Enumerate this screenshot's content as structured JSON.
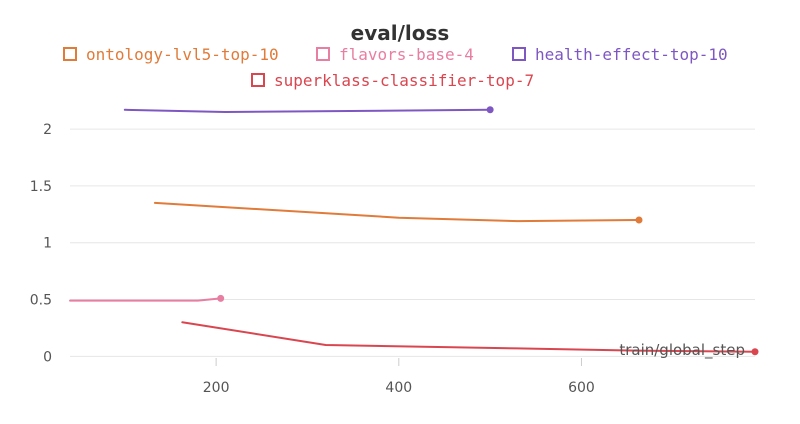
{
  "chart_data": {
    "type": "line",
    "title": "eval/loss",
    "xlabel": "train/global_step",
    "ylabel": "",
    "xlim": [
      40,
      790
    ],
    "ylim": [
      -0.05,
      2.3
    ],
    "x_ticks": [
      200,
      400,
      600
    ],
    "y_ticks": [
      0,
      0.5,
      1,
      1.5,
      2
    ],
    "y_tick_labels": [
      "0",
      "0.5",
      "1",
      "1.5",
      "2"
    ],
    "grid": "horizontal",
    "legend_position": "top",
    "series": [
      {
        "name": "ontology-lvl5-top-10",
        "color": "#e07b39",
        "points": [
          [
            133,
            1.35
          ],
          [
            400,
            1.22
          ],
          [
            530,
            1.19
          ],
          [
            663,
            1.2
          ]
        ]
      },
      {
        "name": "flavors-base-4",
        "color": "#e87ea1",
        "points": [
          [
            40,
            0.49
          ],
          [
            180,
            0.49
          ],
          [
            205,
            0.51
          ]
        ]
      },
      {
        "name": "health-effect-top-10",
        "color": "#7e57c2",
        "points": [
          [
            100,
            2.17
          ],
          [
            210,
            2.15
          ],
          [
            500,
            2.17
          ]
        ]
      },
      {
        "name": "superklass-classifier-top-7",
        "color": "#d9464f",
        "points": [
          [
            163,
            0.3
          ],
          [
            320,
            0.1
          ],
          [
            530,
            0.07
          ],
          [
            660,
            0.05
          ],
          [
            790,
            0.04
          ]
        ]
      }
    ]
  }
}
